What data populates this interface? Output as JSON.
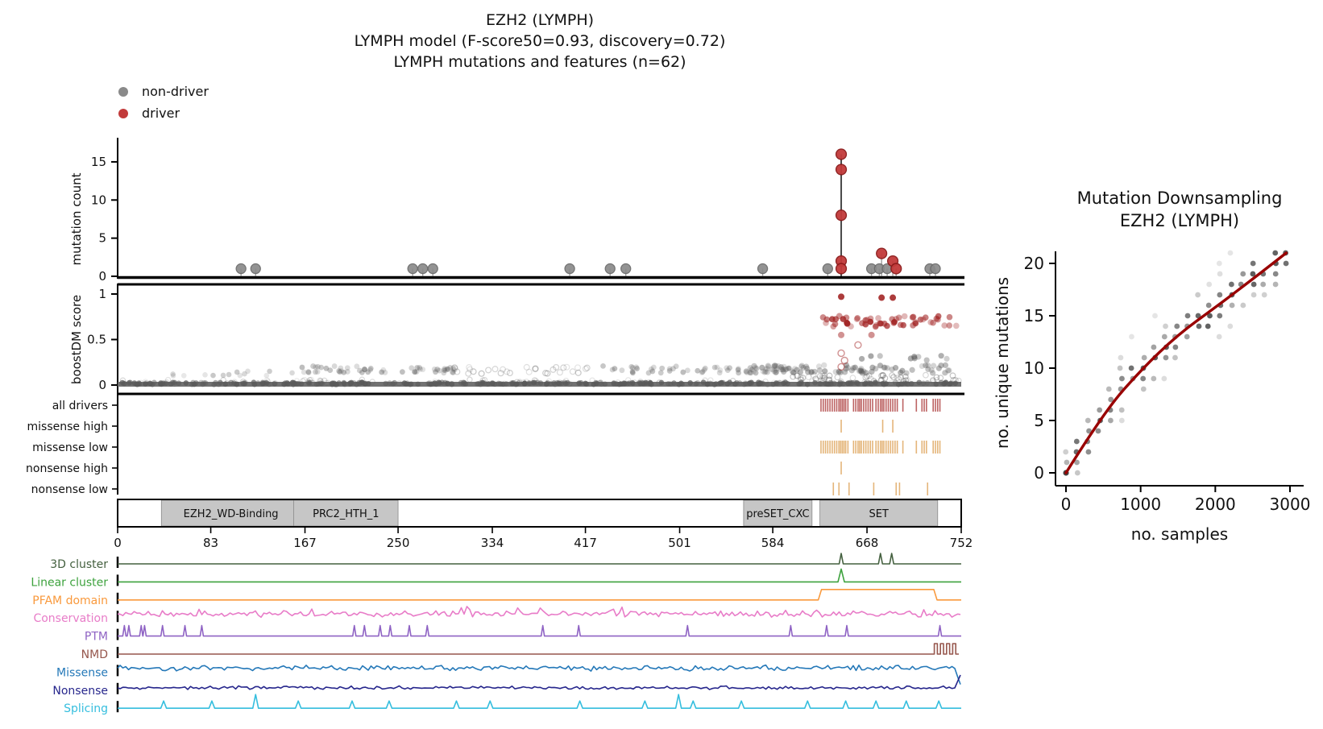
{
  "title": {
    "line1": "EZH2 (LYMPH)",
    "line2": "LYMPH model (F-score50=0.93, discovery=0.72)",
    "line3": "LYMPH mutations and features (n=62)"
  },
  "legend": {
    "items": [
      {
        "label": "non-driver",
        "key": "non_driver"
      },
      {
        "label": "driver",
        "key": "driver"
      }
    ]
  },
  "colors": {
    "non_driver": "#8a8a8a",
    "non_driver_edge": "#6a6a6a",
    "driver": "#c23b3b",
    "driver_edge": "#8b1a1a",
    "tick_red": "#b24a4a",
    "tick_orange": "#e0a963",
    "domain_fill": "#c6c6c6",
    "scatter_gray": "#5a5a5a",
    "scatter_red": "#a32626",
    "curve": "#990000",
    "cloud_dot": "#3f3f3f"
  },
  "chart_data": [
    {
      "id": "mutation-count",
      "type": "scatter",
      "ylabel": "mutation count",
      "yticks": [
        0,
        5,
        10,
        15
      ],
      "xlim": [
        0,
        752
      ],
      "ylim": [
        0,
        16
      ],
      "non_driver_positions": [
        110,
        123,
        263,
        272,
        281,
        403,
        439,
        453,
        575,
        633,
        672,
        679,
        686,
        724,
        729
      ],
      "driver_points": [
        [
          645,
          16
        ],
        [
          645,
          14
        ],
        [
          645,
          8
        ],
        [
          645,
          2
        ],
        [
          645,
          1
        ],
        [
          681,
          3
        ],
        [
          691,
          2
        ],
        [
          694,
          1
        ]
      ]
    },
    {
      "id": "boostdm-score",
      "type": "scatter",
      "ylabel": "boostDM score",
      "yticks": [
        0,
        0.5,
        1
      ],
      "red_points": [
        [
          645,
          0.97
        ],
        [
          681,
          0.96
        ],
        [
          691,
          0.96
        ],
        [
          645,
          0.55
        ],
        [
          672,
          0.55
        ],
        [
          645,
          0.35
        ],
        [
          648,
          0.27
        ],
        [
          660,
          0.44
        ],
        [
          645,
          0.2
        ]
      ],
      "bands": [
        {
          "x": [
            3,
            750
          ],
          "y": [
            0.005,
            0.03
          ],
          "n": 330,
          "c": "gray",
          "a": 0.6,
          "r": 3.3,
          "open": false
        },
        {
          "x": [
            3,
            750
          ],
          "y": [
            0.01,
            0.06
          ],
          "n": 90,
          "c": "gray",
          "a": 0.2,
          "r": 3.1,
          "open": true
        },
        {
          "x": [
            40,
            160
          ],
          "y": [
            0.1,
            0.17
          ],
          "n": 14,
          "c": "gray",
          "a": 0.25,
          "r": 3.3,
          "open": false
        },
        {
          "x": [
            160,
            300
          ],
          "y": [
            0.13,
            0.21
          ],
          "n": 55,
          "c": "gray",
          "a": 0.3,
          "r": 3.4,
          "open": false
        },
        {
          "x": [
            300,
            420
          ],
          "y": [
            0.12,
            0.2
          ],
          "n": 30,
          "c": "gray",
          "a": 0.28,
          "r": 3.4,
          "open": true
        },
        {
          "x": [
            430,
            600
          ],
          "y": [
            0.13,
            0.21
          ],
          "n": 55,
          "c": "gray",
          "a": 0.3,
          "r": 3.4,
          "open": false
        },
        {
          "x": [
            560,
            745
          ],
          "y": [
            0.13,
            0.22
          ],
          "n": 85,
          "c": "gray",
          "a": 0.35,
          "r": 3.6,
          "open": false
        },
        {
          "x": [
            600,
            750
          ],
          "y": [
            0.05,
            0.11
          ],
          "n": 45,
          "c": "gray",
          "a": 0.3,
          "r": 3.3,
          "open": true
        },
        {
          "x": [
            655,
            740
          ],
          "y": [
            0.27,
            0.33
          ],
          "n": 10,
          "c": "gray",
          "a": 0.45,
          "r": 3.6,
          "open": false
        },
        {
          "x": [
            628,
            748
          ],
          "y": [
            0.64,
            0.76
          ],
          "n": 42,
          "c": "red",
          "a": 0.55,
          "r": 3.8,
          "open": false
        },
        {
          "x": [
            630,
            700
          ],
          "y": [
            0.66,
            0.74
          ],
          "n": 14,
          "c": "red",
          "a": 0.75,
          "r": 3.8,
          "open": false
        }
      ]
    },
    {
      "id": "driver-tracks",
      "type": "rug",
      "rows": [
        {
          "label": "all drivers",
          "color_key": "tick_red",
          "positions": [
            627,
            629,
            631,
            633,
            635,
            637,
            639,
            641,
            643,
            644.5,
            646,
            647.5,
            649,
            651,
            656,
            658,
            660,
            661.5,
            663,
            665,
            667,
            669,
            671,
            673,
            676,
            678,
            680,
            681.5,
            683,
            685,
            687,
            689,
            691,
            693,
            695,
            700,
            712,
            717,
            719,
            721,
            727,
            729,
            731,
            733
          ]
        },
        {
          "label": "missense high",
          "color_key": "tick_orange",
          "positions": [
            645,
            682,
            691
          ]
        },
        {
          "label": "missense low",
          "color_key": "tick_orange",
          "positions": [
            627,
            629,
            631,
            633,
            635,
            637,
            639,
            641,
            643,
            644.5,
            646,
            647.5,
            649,
            651,
            656,
            658,
            660,
            661.5,
            663,
            665,
            667,
            669,
            671,
            673,
            676,
            678,
            680,
            681.5,
            683,
            685,
            687,
            689,
            691,
            693,
            695,
            700,
            712,
            717,
            719,
            721,
            727,
            729,
            731,
            733
          ]
        },
        {
          "label": "nonsense high",
          "color_key": "tick_orange",
          "positions": [
            645
          ]
        },
        {
          "label": "nonsense low",
          "color_key": "tick_orange",
          "positions": [
            638,
            643,
            652,
            674,
            694,
            697,
            722
          ]
        }
      ]
    },
    {
      "id": "domain-axis",
      "type": "domain",
      "xticks": [
        0,
        83,
        167,
        250,
        334,
        417,
        501,
        584,
        668,
        752
      ],
      "domains": [
        {
          "name": "EZH2_WD-Binding",
          "start": 39,
          "end": 163
        },
        {
          "name": "PRC2_HTH_1",
          "start": 157,
          "end": 250
        },
        {
          "name": "preSET_CXC",
          "start": 558,
          "end": 619
        },
        {
          "name": "SET",
          "start": 626,
          "end": 731
        }
      ]
    },
    {
      "id": "features",
      "type": "tracks",
      "rows": [
        {
          "label": "3D cluster",
          "color": "#44603f",
          "shape": "spikes",
          "positions": [
            645,
            680,
            690
          ],
          "height": 13,
          "halfwidth": 2.5
        },
        {
          "label": "Linear cluster",
          "color": "#3da23d",
          "shape": "spikes",
          "positions": [
            645
          ],
          "height": 16,
          "halfwidth": 4
        },
        {
          "label": "PFAM domain",
          "color": "#f9993c",
          "shape": "pulse",
          "segments": [
            [
              626,
              729
            ]
          ],
          "height": 13
        },
        {
          "label": "Conservation",
          "color": "#e87cc8",
          "shape": "noise",
          "amp": 4.5,
          "seed": 11
        },
        {
          "label": "PTM",
          "color": "#8f63c4",
          "shape": "spikes",
          "positions": [
            6,
            10,
            21,
            24,
            40,
            60,
            75,
            211,
            220,
            234,
            243,
            260,
            276,
            379,
            411,
            508,
            600,
            632,
            650,
            733
          ],
          "height": 13,
          "halfwidth": 2
        },
        {
          "label": "NMD",
          "color": "#96574d",
          "shape": "endwave",
          "start": 728,
          "amp": 13,
          "pulses": 4
        },
        {
          "label": "Missense",
          "color": "#2478b8",
          "shape": "noise",
          "amp": 4,
          "seed": 23,
          "end_drop": 22
        },
        {
          "label": "Nonsense",
          "color": "#26268c",
          "shape": "noise",
          "amp": 2.4,
          "seed": 37,
          "end_rise": 18
        },
        {
          "label": "Splicing",
          "color": "#35bede",
          "shape": "spikes",
          "positions": [
            41,
            84,
            123,
            161,
            209,
            242,
            302,
            332,
            412,
            470,
            500,
            513,
            556,
            615,
            649,
            676,
            703,
            732
          ],
          "height": 9,
          "tall": [
            123,
            500
          ],
          "tall_height": 17,
          "halfwidth": 3.5
        }
      ]
    },
    {
      "id": "downsampling",
      "type": "scatter",
      "title_line1": "Mutation Downsampling",
      "title_line2": "EZH2 (LYMPH)",
      "xlabel": "no. samples",
      "ylabel": "no. unique mutations",
      "xticks": [
        0,
        1000,
        2000,
        3000
      ],
      "yticks": [
        0,
        5,
        10,
        15,
        20
      ],
      "xlim": [
        0,
        3000
      ],
      "ylim": [
        0,
        21
      ],
      "curve": [
        [
          0,
          0
        ],
        [
          500,
          5.7
        ],
        [
          1000,
          9.8
        ],
        [
          1500,
          13.2
        ],
        [
          2000,
          15.8
        ],
        [
          2500,
          18.5
        ],
        [
          2950,
          21
        ]
      ],
      "cloud": {
        "columns": 21,
        "x_max": 2950,
        "y_spread": 4
      }
    }
  ]
}
